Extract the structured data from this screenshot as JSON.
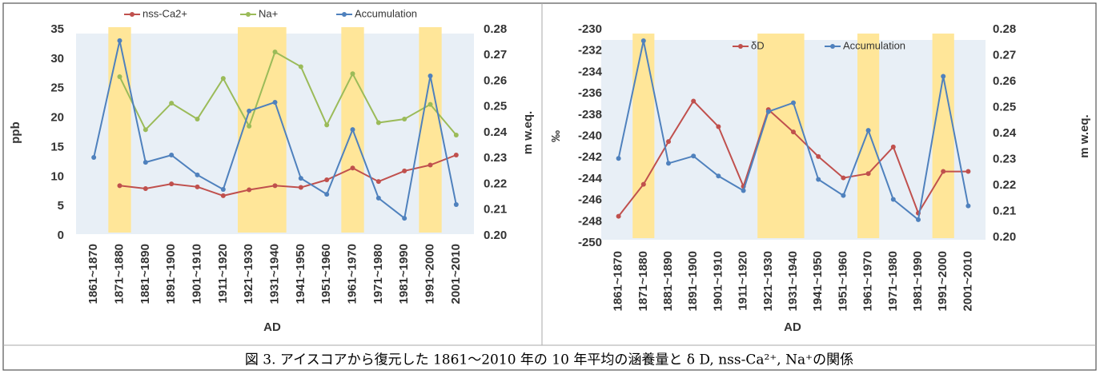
{
  "chart_data": [
    {
      "type": "line",
      "categories": [
        "1861~1870",
        "1871~1880",
        "1881~1890",
        "1891~1900",
        "1901~1910",
        "1911~1920",
        "1921~1930",
        "1931~1940",
        "1941~1950",
        "1951~1960",
        "1961~1970",
        "1971~1980",
        "1981~1990",
        "1991~2000",
        "2001~2010"
      ],
      "x_label": "AD",
      "y_label": "ppb",
      "y2_label": "m w.eq.",
      "ylim": [
        0,
        35
      ],
      "yticks": [
        0,
        5,
        10,
        15,
        20,
        25,
        30,
        35
      ],
      "y2lim": [
        0.2,
        0.28
      ],
      "y2ticks": [
        {
          "value": 0.2,
          "label": "0.20"
        },
        {
          "value": 0.21,
          "label": "0.21"
        },
        {
          "value": 0.22,
          "label": "0.22"
        },
        {
          "value": 0.23,
          "label": "0.23"
        },
        {
          "value": 0.24,
          "label": "0.24"
        },
        {
          "value": 0.25,
          "label": "0.25"
        },
        {
          "value": 0.26,
          "label": "0.26"
        },
        {
          "value": 0.27,
          "label": "0.27"
        },
        {
          "value": 0.28,
          "label": "0.28"
        }
      ],
      "highlights": [
        [
          1,
          1
        ],
        [
          6,
          7
        ],
        [
          10,
          10
        ],
        [
          13,
          13
        ]
      ],
      "highlight_color": "#ffe699",
      "series": [
        {
          "name": "nss-Ca2+",
          "color": "#c0504d",
          "values": [
            null,
            8.5,
            8.0,
            8.8,
            8.3,
            6.8,
            7.8,
            8.5,
            8.2,
            9.5,
            11.5,
            9.2,
            11.0,
            12.0,
            13.7
          ]
        },
        {
          "name": "Na+",
          "color": "#9bbb59",
          "values": [
            null,
            27.0,
            18.0,
            22.5,
            19.8,
            26.7,
            18.6,
            31.2,
            28.7,
            18.8,
            27.5,
            19.2,
            19.8,
            22.3,
            17.1
          ]
        },
        {
          "name": "Accumulation",
          "color": "#4f81bd",
          "axis": "y2",
          "values": [
            0.2304,
            0.2757,
            0.2285,
            0.2313,
            0.2236,
            0.218,
            0.2484,
            0.2518,
            0.2223,
            0.2161,
            0.2412,
            0.2146,
            0.2068,
            0.262,
            0.2121
          ]
        }
      ]
    },
    {
      "type": "line",
      "categories": [
        "1861~1870",
        "1871~1880",
        "1881~1890",
        "1891~1900",
        "1901~1910",
        "1911~1920",
        "1921~1930",
        "1931~1940",
        "1941~1950",
        "1951~1960",
        "1961~1970",
        "1971~1980",
        "1981~1990",
        "1991~2000",
        "2001~2010"
      ],
      "x_label": "AD",
      "y_label": "‰",
      "y2_label": "m w.eq.",
      "ylim": [
        -250,
        -230
      ],
      "yticks": [
        -250,
        -248,
        -246,
        -244,
        -242,
        -240,
        -238,
        -236,
        -234,
        -232,
        -230
      ],
      "y2lim": [
        0.2,
        0.28
      ],
      "y2ticks": [
        {
          "value": 0.2,
          "label": "0.20"
        },
        {
          "value": 0.21,
          "label": "0.21"
        },
        {
          "value": 0.22,
          "label": "0.22"
        },
        {
          "value": 0.23,
          "label": "0.23"
        },
        {
          "value": 0.24,
          "label": "0.24"
        },
        {
          "value": 0.25,
          "label": "0.25"
        },
        {
          "value": 0.26,
          "label": "0.26"
        },
        {
          "value": 0.27,
          "label": "0.27"
        },
        {
          "value": 0.28,
          "label": "0.28"
        }
      ],
      "highlights": [
        [
          1,
          1
        ],
        [
          6,
          7
        ],
        [
          10,
          10
        ],
        [
          13,
          13
        ]
      ],
      "highlight_color": "#ffe699",
      "series": [
        {
          "name": "δD",
          "color": "#c0504d",
          "values": [
            -247.5,
            -244.5,
            -240.5,
            -236.7,
            -239.1,
            -244.7,
            -237.5,
            -239.6,
            -241.9,
            -243.9,
            -243.5,
            -241.0,
            -247.2,
            -243.3,
            -243.3
          ]
        },
        {
          "name": "Accumulation",
          "color": "#4f81bd",
          "axis": "y2",
          "values": [
            0.2304,
            0.2757,
            0.2285,
            0.2313,
            0.2236,
            0.218,
            0.2484,
            0.2518,
            0.2223,
            0.2161,
            0.2412,
            0.2146,
            0.2068,
            0.262,
            0.2121
          ]
        }
      ]
    }
  ],
  "caption": "図 3. アイスコアから復元した 1861～2010 年の 10 年平均の涵養量と δ D, nss-Ca²⁺, Na⁺の関係"
}
